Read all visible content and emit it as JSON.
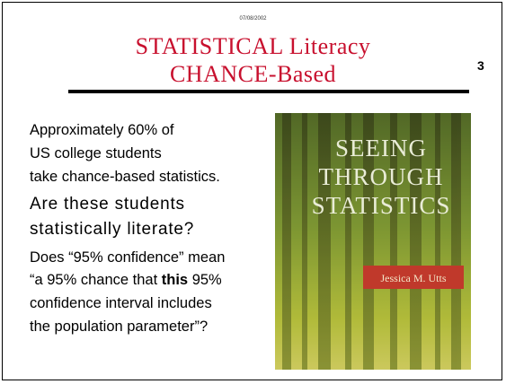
{
  "slide": {
    "date": "07/08/2002",
    "title": [
      "STATISTICAL Literacy",
      "CHANCE-Based"
    ],
    "page_number": "3",
    "intro": [
      "Approximately 60% of",
      "US college students",
      "take chance-based statistics."
    ],
    "question": [
      "Are these students",
      "statistically literate?"
    ],
    "paragraph": {
      "line_0": "Does “95% confidence” mean",
      "line_1": {
        "before": "“a 95% chance that ",
        "bold": "this",
        "after": " 95%"
      },
      "line_2": "confidence interval includes",
      "line_3": "the population parameter”?"
    },
    "book": {
      "title": [
        "SEEING",
        "THROUGH",
        "STATISTICS"
      ],
      "author": "Jessica M. Utts"
    }
  }
}
